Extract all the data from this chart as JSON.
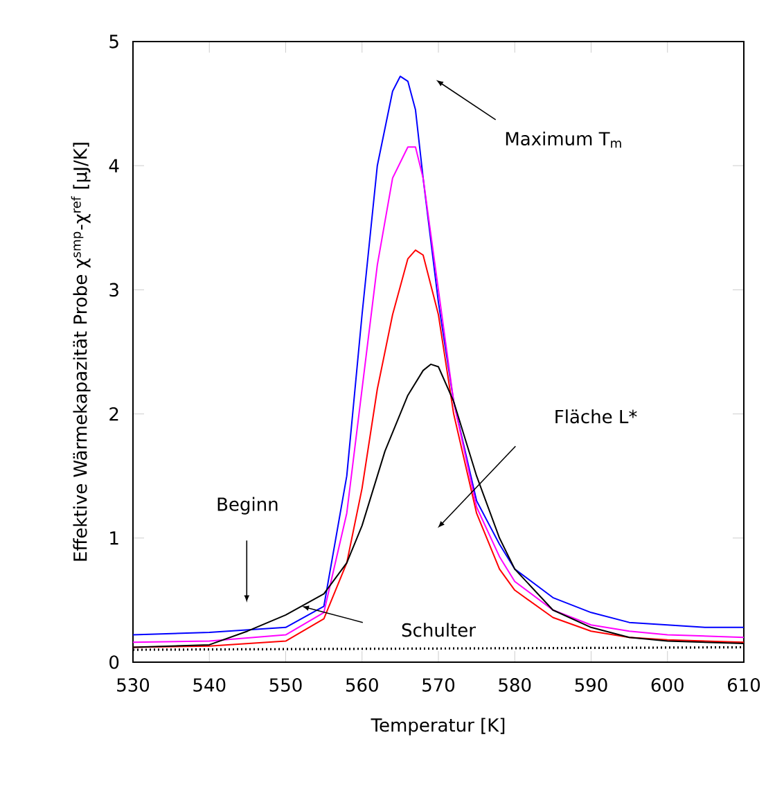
{
  "chart_data": {
    "type": "line",
    "xlabel": "Temperatur [K]",
    "ylabel": "Effektive Wärmekapazität Probe  χ$^{smp}$-χ$^{ref}$ [µJ/K]",
    "xlim": [
      530,
      610
    ],
    "ylim": [
      0,
      5
    ],
    "xticks": [
      530,
      540,
      550,
      560,
      570,
      580,
      590,
      600,
      610
    ],
    "yticks": [
      0,
      1,
      2,
      3,
      4,
      5
    ],
    "series": [
      {
        "color": "#0000ff",
        "line_style": "solid",
        "x": [
          530,
          540,
          550,
          555,
          558,
          560,
          562,
          564,
          565,
          566,
          567,
          568,
          570,
          572,
          575,
          578,
          580,
          585,
          590,
          595,
          600,
          605,
          610
        ],
        "values": [
          0.22,
          0.24,
          0.28,
          0.45,
          1.5,
          2.8,
          4.0,
          4.6,
          4.72,
          4.68,
          4.45,
          3.9,
          2.9,
          2.1,
          1.3,
          0.95,
          0.75,
          0.52,
          0.4,
          0.32,
          0.3,
          0.28,
          0.28
        ]
      },
      {
        "color": "#ff00ff",
        "line_style": "solid",
        "x": [
          530,
          540,
          550,
          555,
          558,
          560,
          562,
          564,
          566,
          567,
          568,
          570,
          572,
          575,
          578,
          580,
          585,
          590,
          595,
          600,
          610
        ],
        "values": [
          0.16,
          0.17,
          0.22,
          0.4,
          1.2,
          2.2,
          3.2,
          3.9,
          4.15,
          4.15,
          3.9,
          3.0,
          2.1,
          1.25,
          0.85,
          0.65,
          0.42,
          0.3,
          0.25,
          0.22,
          0.2
        ]
      },
      {
        "color": "#ff0000",
        "line_style": "solid",
        "x": [
          530,
          540,
          550,
          555,
          558,
          560,
          562,
          564,
          566,
          567,
          568,
          570,
          572,
          575,
          578,
          580,
          585,
          590,
          595,
          600,
          610
        ],
        "values": [
          0.12,
          0.13,
          0.17,
          0.35,
          0.8,
          1.4,
          2.2,
          2.8,
          3.25,
          3.32,
          3.28,
          2.8,
          2.0,
          1.2,
          0.75,
          0.58,
          0.36,
          0.25,
          0.2,
          0.18,
          0.16
        ]
      },
      {
        "color": "#000000",
        "line_style": "solid",
        "x": [
          530,
          540,
          545,
          550,
          555,
          558,
          560,
          563,
          566,
          568,
          569,
          570,
          572,
          575,
          578,
          580,
          585,
          590,
          595,
          600,
          610
        ],
        "values": [
          0.12,
          0.14,
          0.25,
          0.38,
          0.55,
          0.8,
          1.1,
          1.7,
          2.15,
          2.35,
          2.4,
          2.38,
          2.1,
          1.5,
          1.0,
          0.75,
          0.42,
          0.28,
          0.2,
          0.17,
          0.15
        ]
      },
      {
        "color": "#000000",
        "line_style": "dotted",
        "x": [
          530,
          570,
          610
        ],
        "values": [
          0.1,
          0.11,
          0.12
        ]
      }
    ],
    "annotations": [
      "Maximum T$_{m}$",
      "Fläche L*",
      "Beginn",
      "Schulter"
    ]
  }
}
